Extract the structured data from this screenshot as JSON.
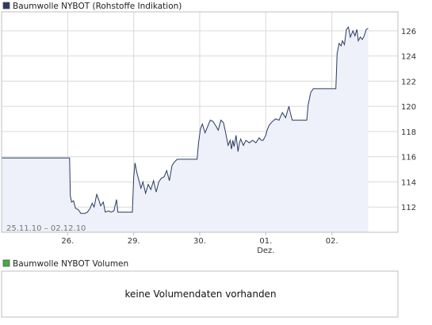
{
  "price_panel": {
    "legend_label": "Baumwolle NYBOT (Rohstoffe Indikation)",
    "legend_color": "#2b3a5e",
    "date_range": "25.11.10 – 02.12.10"
  },
  "volume_panel": {
    "legend_label": "Baumwolle NYBOT Volumen",
    "legend_color": "#3cb043",
    "no_data_text": "keine Volumendaten vorhanden"
  },
  "colors": {
    "line": "#2b3a5e",
    "fill": "#eef0fa",
    "grid": "#d9d9d9",
    "frame": "#bfbfbf"
  },
  "chart_data": {
    "type": "area",
    "title": "Baumwolle NYBOT (Rohstoffe Indikation)",
    "xlabel": "",
    "ylabel": "",
    "ylim": [
      110,
      127.5
    ],
    "xlim": [
      0,
      6.0
    ],
    "grid": true,
    "legend": "top-left",
    "x_ticks": [
      {
        "x": 1.0,
        "label": "26."
      },
      {
        "x": 2.0,
        "label": "29."
      },
      {
        "x": 3.0,
        "label": "30."
      },
      {
        "x": 4.0,
        "label": "01."
      },
      {
        "x": 5.0,
        "label": "02."
      }
    ],
    "x_tick_sublabels": [
      {
        "x": 4.0,
        "label": "Dez."
      }
    ],
    "y_ticks": [
      112,
      114,
      116,
      118,
      120,
      122,
      124,
      126
    ],
    "series": [
      {
        "name": "Baumwolle NYBOT (Rohstoffe Indikation)",
        "points": [
          [
            0.0,
            115.9
          ],
          [
            1.03,
            115.9
          ],
          [
            1.04,
            112.9
          ],
          [
            1.06,
            112.4
          ],
          [
            1.09,
            112.5
          ],
          [
            1.12,
            111.9
          ],
          [
            1.16,
            111.8
          ],
          [
            1.2,
            111.5
          ],
          [
            1.26,
            111.5
          ],
          [
            1.3,
            111.6
          ],
          [
            1.34,
            111.9
          ],
          [
            1.37,
            112.3
          ],
          [
            1.4,
            112.0
          ],
          [
            1.44,
            113.0
          ],
          [
            1.47,
            112.6
          ],
          [
            1.5,
            112.1
          ],
          [
            1.54,
            112.4
          ],
          [
            1.57,
            111.6
          ],
          [
            1.62,
            111.7
          ],
          [
            1.66,
            111.6
          ],
          [
            1.7,
            111.7
          ],
          [
            1.74,
            112.6
          ],
          [
            1.76,
            111.6
          ],
          [
            1.98,
            111.6
          ],
          [
            2.0,
            114.4
          ],
          [
            2.02,
            115.5
          ],
          [
            2.05,
            114.7
          ],
          [
            2.08,
            114.1
          ],
          [
            2.11,
            113.5
          ],
          [
            2.14,
            114.0
          ],
          [
            2.18,
            113.1
          ],
          [
            2.22,
            113.8
          ],
          [
            2.26,
            113.4
          ],
          [
            2.3,
            114.1
          ],
          [
            2.34,
            113.2
          ],
          [
            2.38,
            114.0
          ],
          [
            2.42,
            114.3
          ],
          [
            2.46,
            114.4
          ],
          [
            2.5,
            114.9
          ],
          [
            2.54,
            114.1
          ],
          [
            2.58,
            115.3
          ],
          [
            2.62,
            115.6
          ],
          [
            2.66,
            115.8
          ],
          [
            2.96,
            115.8
          ],
          [
            2.98,
            117.0
          ],
          [
            3.01,
            118.2
          ],
          [
            3.04,
            118.6
          ],
          [
            3.08,
            117.9
          ],
          [
            3.12,
            118.4
          ],
          [
            3.16,
            118.9
          ],
          [
            3.2,
            118.8
          ],
          [
            3.25,
            118.4
          ],
          [
            3.28,
            118.1
          ],
          [
            3.32,
            118.9
          ],
          [
            3.36,
            118.7
          ],
          [
            3.4,
            117.7
          ],
          [
            3.43,
            116.9
          ],
          [
            3.46,
            117.3
          ],
          [
            3.48,
            116.6
          ],
          [
            3.5,
            117.3
          ],
          [
            3.52,
            116.8
          ],
          [
            3.55,
            117.7
          ],
          [
            3.58,
            116.4
          ],
          [
            3.6,
            117.1
          ],
          [
            3.62,
            117.4
          ],
          [
            3.66,
            116.9
          ],
          [
            3.7,
            117.3
          ],
          [
            3.75,
            117.1
          ],
          [
            3.8,
            117.3
          ],
          [
            3.85,
            117.1
          ],
          [
            3.9,
            117.5
          ],
          [
            3.93,
            117.3
          ],
          [
            3.96,
            117.3
          ],
          [
            4.0,
            117.7
          ],
          [
            4.02,
            118.1
          ],
          [
            4.05,
            118.5
          ],
          [
            4.1,
            118.8
          ],
          [
            4.15,
            119.0
          ],
          [
            4.2,
            118.9
          ],
          [
            4.25,
            119.5
          ],
          [
            4.3,
            119.1
          ],
          [
            4.35,
            120.0
          ],
          [
            4.38,
            119.3
          ],
          [
            4.4,
            118.9
          ],
          [
            4.62,
            118.9
          ],
          [
            4.64,
            120.1
          ],
          [
            4.68,
            121.1
          ],
          [
            4.72,
            121.4
          ],
          [
            5.06,
            121.4
          ],
          [
            5.08,
            124.2
          ],
          [
            5.11,
            125.0
          ],
          [
            5.14,
            124.8
          ],
          [
            5.16,
            125.2
          ],
          [
            5.19,
            124.9
          ],
          [
            5.22,
            126.1
          ],
          [
            5.25,
            126.3
          ],
          [
            5.28,
            125.5
          ],
          [
            5.32,
            126.0
          ],
          [
            5.35,
            125.6
          ],
          [
            5.38,
            126.1
          ],
          [
            5.4,
            125.2
          ],
          [
            5.43,
            125.5
          ],
          [
            5.46,
            125.3
          ],
          [
            5.49,
            125.6
          ],
          [
            5.52,
            126.1
          ],
          [
            5.55,
            126.2
          ]
        ]
      }
    ]
  }
}
